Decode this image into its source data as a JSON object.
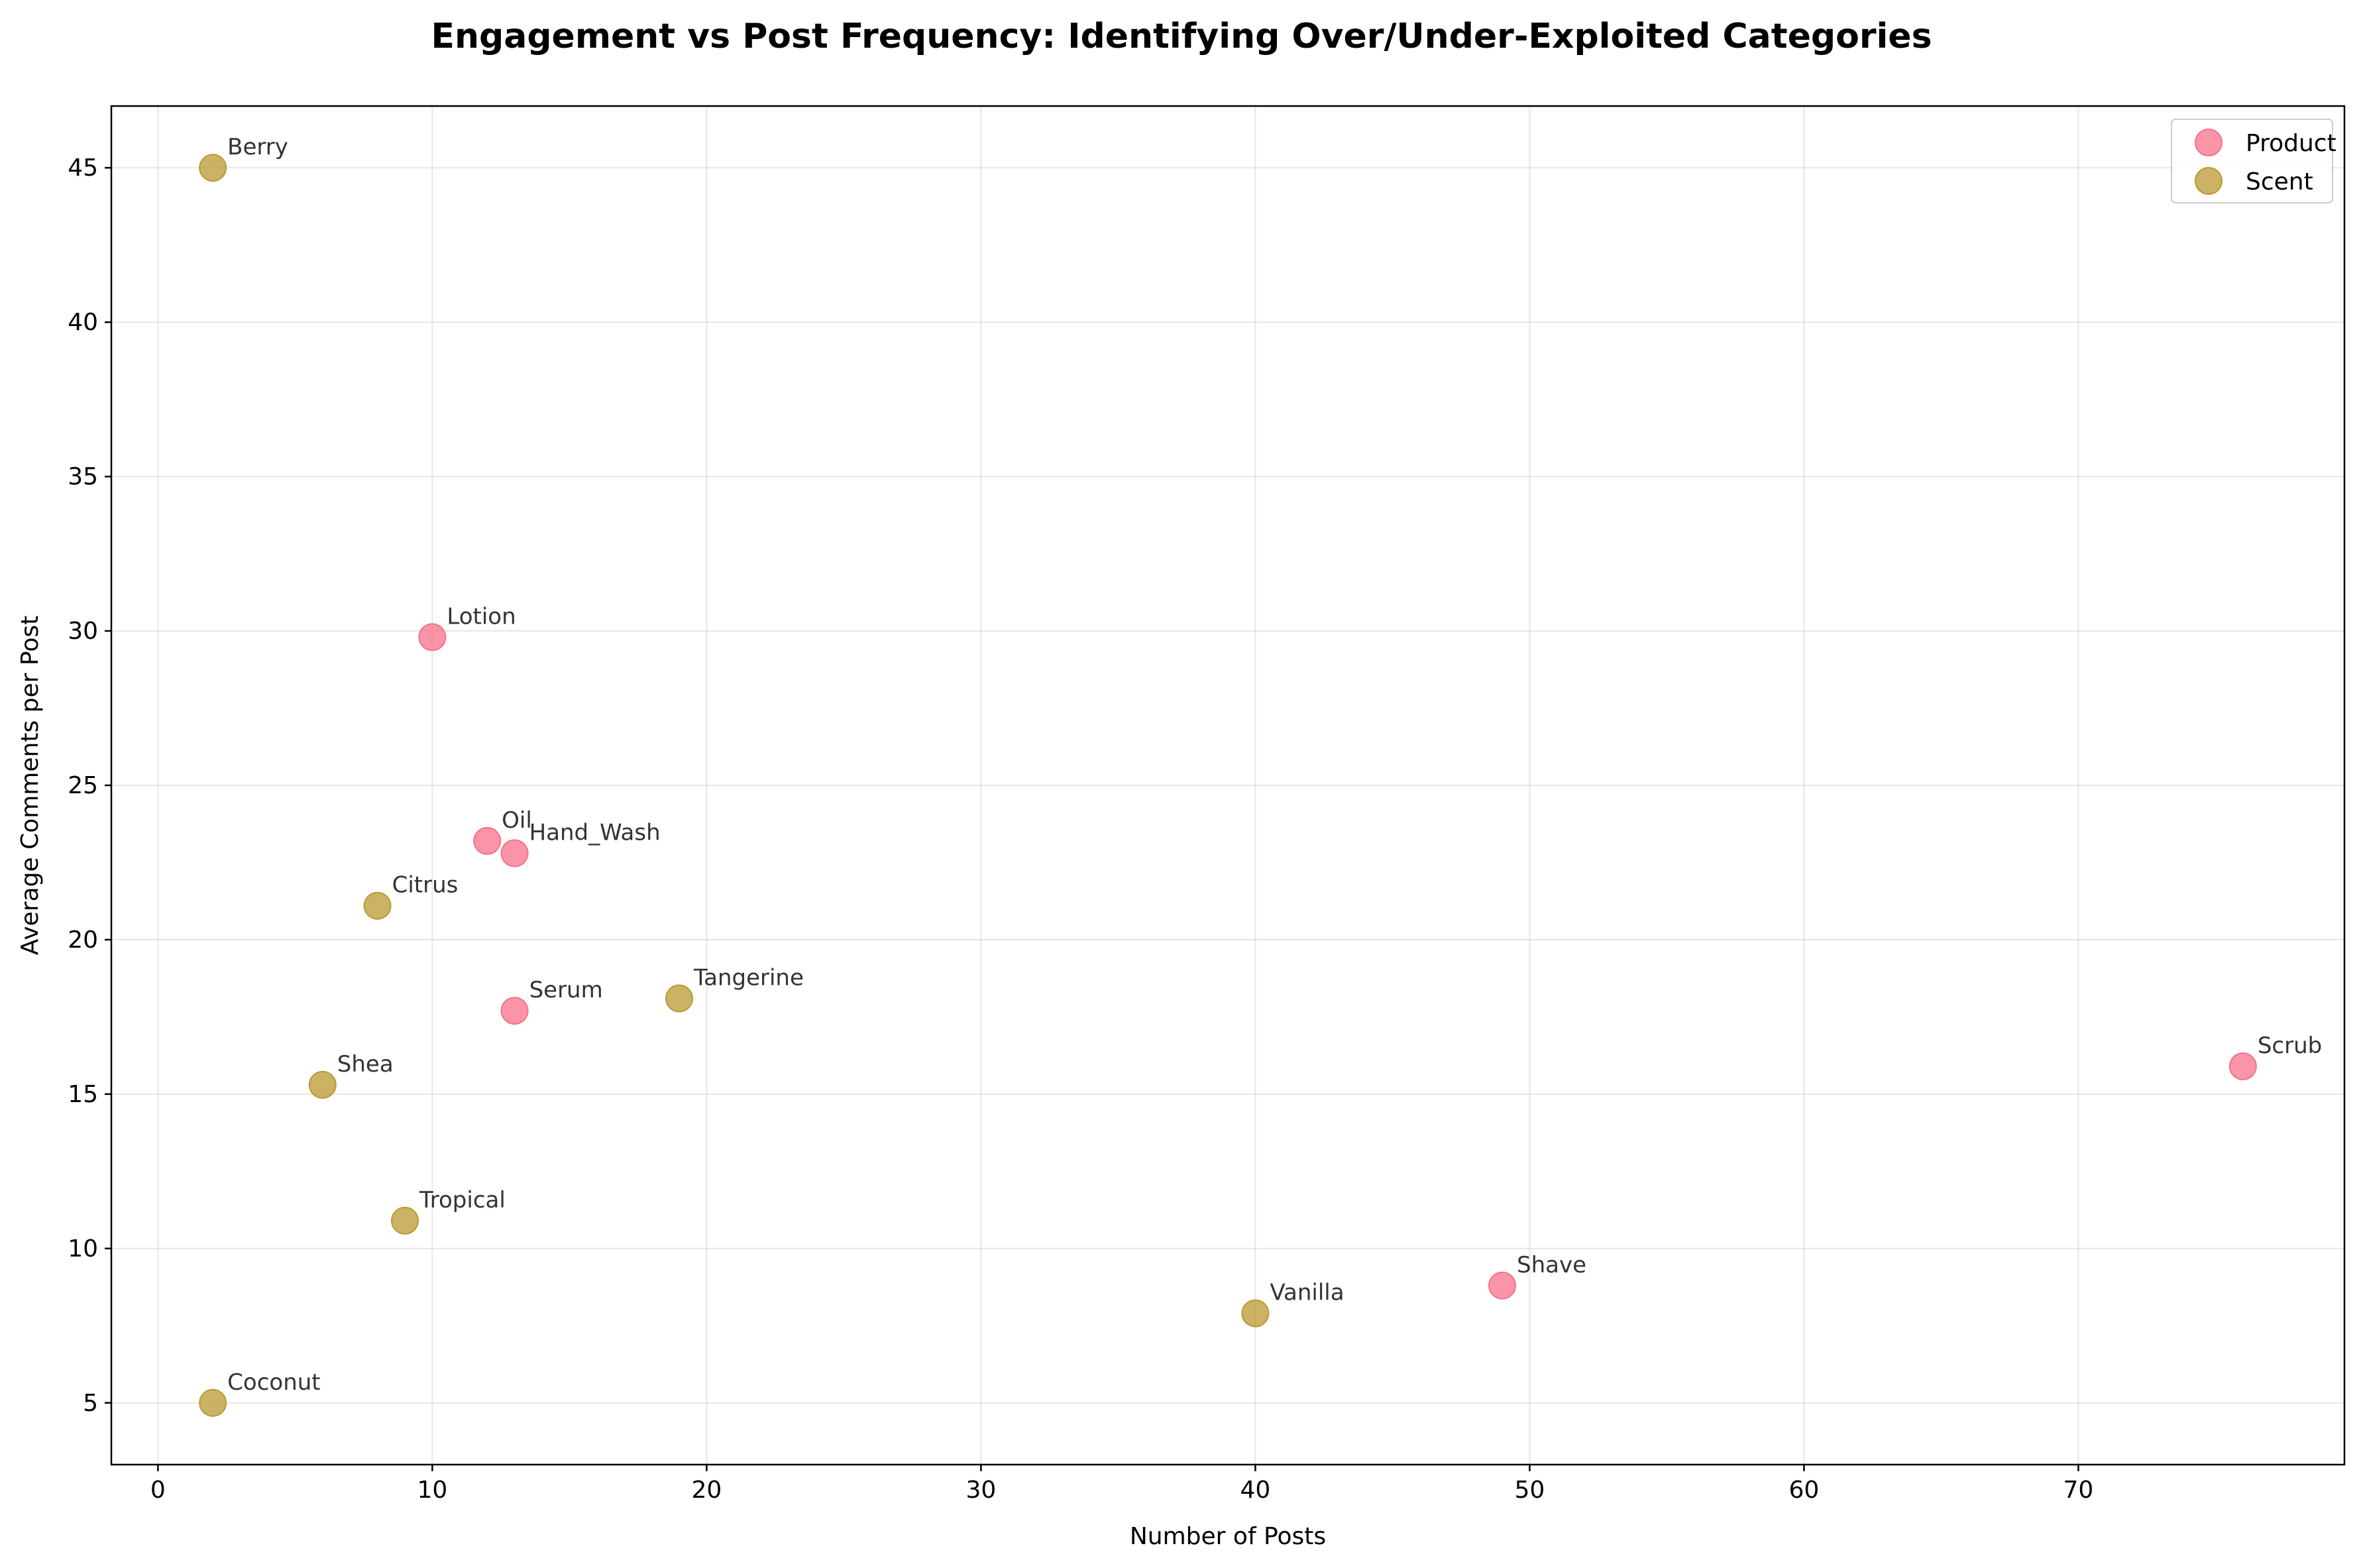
{
  "chart_data": {
    "type": "scatter",
    "title": "Engagement vs Post Frequency: Identifying Over/Under-Exploited Categories",
    "xlabel": "Number of Posts",
    "ylabel": "Average Comments per Post",
    "xlim": [
      -1.7,
      79.7
    ],
    "ylim": [
      3,
      47
    ],
    "xticks": [
      0,
      10,
      20,
      30,
      40,
      50,
      60,
      70
    ],
    "yticks": [
      5,
      10,
      15,
      20,
      25,
      30,
      35,
      40,
      45
    ],
    "grid": true,
    "legend_position": "top-right",
    "series": [
      {
        "name": "Product",
        "color": "#f77189",
        "points": [
          {
            "label": "Lotion",
            "x": 10,
            "y": 29.8
          },
          {
            "label": "Oil",
            "x": 12,
            "y": 23.2
          },
          {
            "label": "Hand_Wash",
            "x": 13,
            "y": 22.8
          },
          {
            "label": "Serum",
            "x": 13,
            "y": 17.7
          },
          {
            "label": "Scrub",
            "x": 76,
            "y": 15.9
          },
          {
            "label": "Shave",
            "x": 49,
            "y": 8.8
          }
        ]
      },
      {
        "name": "Scent",
        "color": "#bb9832",
        "points": [
          {
            "label": "Berry",
            "x": 2,
            "y": 45.0
          },
          {
            "label": "Citrus",
            "x": 8,
            "y": 21.1
          },
          {
            "label": "Tangerine",
            "x": 19,
            "y": 18.1
          },
          {
            "label": "Shea",
            "x": 6,
            "y": 15.3
          },
          {
            "label": "Tropical",
            "x": 9,
            "y": 10.9
          },
          {
            "label": "Vanilla",
            "x": 40,
            "y": 7.9
          },
          {
            "label": "Coconut",
            "x": 2,
            "y": 5.0
          }
        ]
      }
    ]
  }
}
